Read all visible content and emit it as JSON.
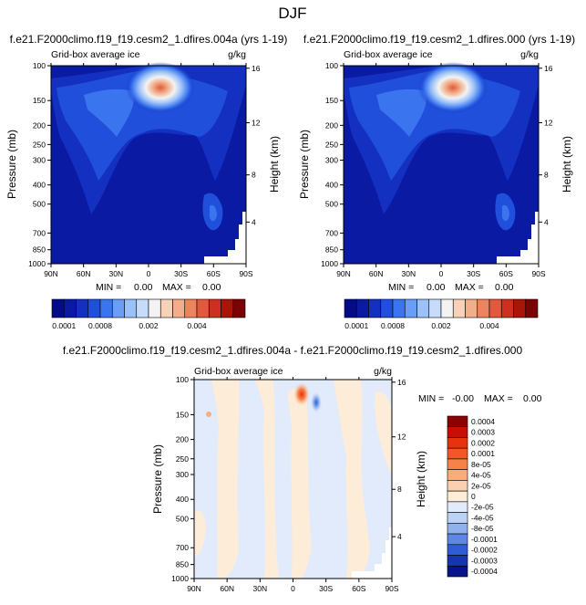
{
  "figure": {
    "title": "DJF"
  },
  "chart_data": [
    {
      "type": "heatmap",
      "title": "f.e21.F2000climo.f19_f19.cesm2_1.dfires.004a (yrs 1-19)",
      "subtitle": "Grid-box average ice",
      "units": "g/kg",
      "ylabel": "Pressure (mb)",
      "ylabel_right": "Height (km)",
      "x_ticks": [
        "90N",
        "60N",
        "30N",
        "0",
        "30S",
        "60S",
        "90S"
      ],
      "y_ticks": [
        "100",
        "150",
        "200",
        "250",
        "300",
        "400",
        "500",
        "700",
        "850",
        "1000"
      ],
      "y_ticks_right": [
        "16",
        "12",
        "8",
        "4"
      ],
      "stats": {
        "min_label": "MIN =",
        "min_value": "0.00",
        "max_label": "MAX =",
        "max_value": "0.00"
      },
      "colorbar_labels": [
        "0.0001",
        "0.0008",
        "0.002",
        "0.004"
      ],
      "features": [
        {
          "lat": 5,
          "p": 200,
          "level": 1.0
        },
        {
          "lat": -65,
          "p": 720,
          "level": 0.35
        },
        {
          "lat": 70,
          "p": 650,
          "level": 0.2
        }
      ]
    },
    {
      "type": "heatmap",
      "title": "f.e21.F2000climo.f19_f19.cesm2_1.dfires.000 (yrs 1-19)",
      "subtitle": "Grid-box average ice",
      "units": "g/kg",
      "ylabel": "Pressure (mb)",
      "ylabel_right": "Height (km)",
      "x_ticks": [
        "90N",
        "60N",
        "30N",
        "0",
        "30S",
        "60S",
        "90S"
      ],
      "y_ticks": [
        "100",
        "150",
        "200",
        "250",
        "300",
        "400",
        "500",
        "700",
        "850",
        "1000"
      ],
      "y_ticks_right": [
        "16",
        "12",
        "8",
        "4"
      ],
      "stats": {
        "min_label": "MIN =",
        "min_value": "0.00",
        "max_label": "MAX =",
        "max_value": "0.00"
      },
      "colorbar_labels": [
        "0.0001",
        "0.0008",
        "0.002",
        "0.004"
      ]
    },
    {
      "type": "heatmap",
      "title": "f.e21.F2000climo.f19_f19.cesm2_1.dfires.004a - f.e21.F2000climo.f19_f19.cesm2_1.dfires.000",
      "subtitle": "Grid-box average ice",
      "units": "g/kg",
      "ylabel": "Pressure (mb)",
      "ylabel_right": "Height (km)",
      "x_ticks": [
        "90N",
        "60N",
        "30N",
        "0",
        "30S",
        "60S",
        "90S"
      ],
      "y_ticks": [
        "100",
        "150",
        "200",
        "250",
        "300",
        "400",
        "500",
        "700",
        "850",
        "1000"
      ],
      "y_ticks_right": [
        "16",
        "12",
        "8",
        "4"
      ],
      "stats": {
        "min_label": "MIN =",
        "min_value": "-0.00",
        "max_label": "MAX =",
        "max_value": "0.00"
      },
      "colorbar_labels": [
        "0.0004",
        "0.0003",
        "0.0002",
        "0.0001",
        "8e-05",
        "4e-05",
        "2e-05",
        "0",
        "-2e-05",
        "-4e-05",
        "-8e-05",
        "-0.0001",
        "-0.0002",
        "-0.0003",
        "-0.0004"
      ]
    }
  ],
  "colors": {
    "seq": [
      "#030c86",
      "#0a1aa3",
      "#1430c0",
      "#1f4fdb",
      "#3a74ee",
      "#6a9ef6",
      "#9bc1f9",
      "#c6dcfa",
      "#f3f3f3",
      "#f7d2b8",
      "#f2ae8a",
      "#ec8460",
      "#e25a3c",
      "#ce3020",
      "#a71608",
      "#7a0404"
    ],
    "diff": [
      "#8b0000",
      "#c80e00",
      "#e6320d",
      "#f0582a",
      "#f58348",
      "#f9ad7c",
      "#fbd0b0",
      "#fdecd8",
      "#e1ebfb",
      "#bcd2f5",
      "#8fb1ee",
      "#5d87e4",
      "#2f5dd6",
      "#1636b0",
      "#06138a"
    ]
  }
}
